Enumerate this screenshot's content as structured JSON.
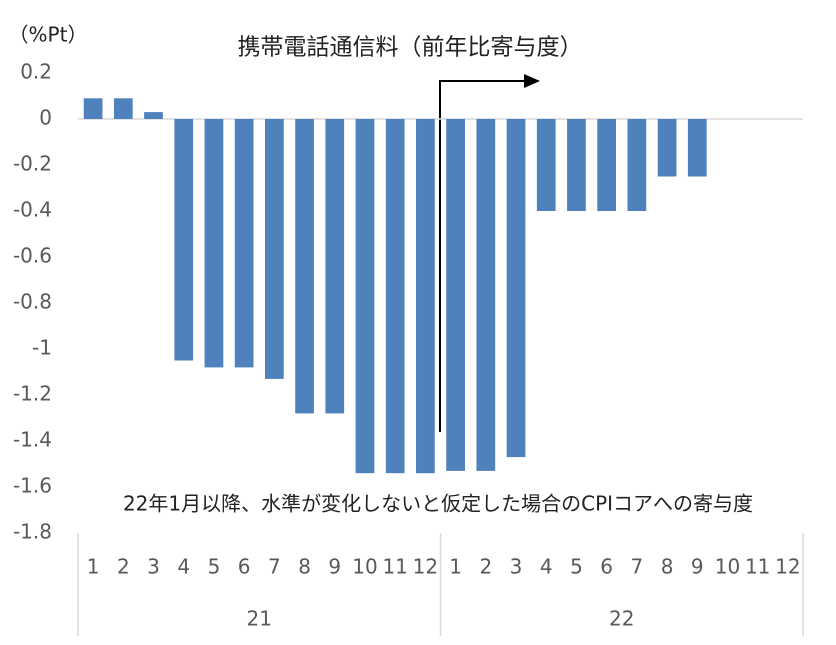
{
  "chart_data": {
    "type": "bar",
    "title": "携帯電話通信料（前年比寄与度）",
    "y_label": "（%Pt）",
    "annotation": "22年1月以降、水準が変化しないと仮定した場合のCPIコアへの寄与度",
    "categories": [
      "1",
      "2",
      "3",
      "4",
      "5",
      "6",
      "7",
      "8",
      "9",
      "10",
      "11",
      "12",
      "1",
      "2",
      "3",
      "4",
      "5",
      "6",
      "7",
      "8",
      "9",
      "10",
      "11",
      "12"
    ],
    "category_groups": [
      "21",
      "22"
    ],
    "values": [
      0.09,
      0.09,
      0.03,
      -1.05,
      -1.08,
      -1.08,
      -1.13,
      -1.28,
      -1.28,
      -1.54,
      -1.54,
      -1.54,
      -1.53,
      -1.53,
      -1.47,
      -0.4,
      -0.4,
      -0.4,
      -0.4,
      -0.25,
      -0.25,
      null,
      null,
      null
    ],
    "color": "#4f81bd",
    "ylim": [
      -1.8,
      0.2
    ],
    "yticks": [
      0.2,
      0,
      -0.2,
      -0.4,
      -0.6,
      -0.8,
      -1,
      -1.2,
      -1.4,
      -1.6,
      -1.8
    ],
    "grid": false
  }
}
